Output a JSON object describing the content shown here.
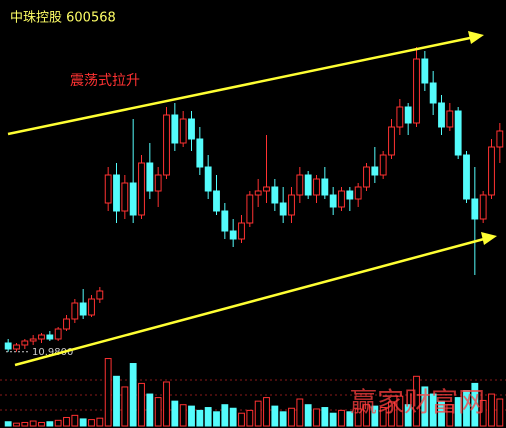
{
  "chart_data": {
    "type": "candlestick",
    "title": "中珠控股 600568",
    "annotation": "震荡式拉升",
    "low_marker": {
      "value": 10.98,
      "label": "10.9800"
    },
    "watermark": "赢家财富网",
    "up_color": "#ff3232",
    "down_color": "#54fcfc",
    "ylim": [
      10.0,
      19.0
    ],
    "volume_ylim": [
      0,
      100
    ],
    "open": [
      11.2,
      11.05,
      11.15,
      11.25,
      11.3,
      11.4,
      11.3,
      11.55,
      11.8,
      12.2,
      11.9,
      12.3,
      14.7,
      15.4,
      14.5,
      15.2,
      14.4,
      15.7,
      15.0,
      15.4,
      16.9,
      16.2,
      16.8,
      16.3,
      15.6,
      15.0,
      14.5,
      14.0,
      13.8,
      14.2,
      14.9,
      15.0,
      15.1,
      14.7,
      14.4,
      14.9,
      15.4,
      14.9,
      15.3,
      14.9,
      14.6,
      15.0,
      14.8,
      15.1,
      15.6,
      15.4,
      15.9,
      16.6,
      17.1,
      16.7,
      18.3,
      17.7,
      17.2,
      16.6,
      17.0,
      15.9,
      14.8,
      14.3,
      14.9,
      16.1
    ],
    "high": [
      11.3,
      11.2,
      11.3,
      11.4,
      11.45,
      11.5,
      11.6,
      11.9,
      12.3,
      12.55,
      12.4,
      12.6,
      15.6,
      15.7,
      15.4,
      16.8,
      15.9,
      16.2,
      15.6,
      17.1,
      17.2,
      17.0,
      17.0,
      16.6,
      15.9,
      15.4,
      14.7,
      14.3,
      14.4,
      15.0,
      15.3,
      16.4,
      15.3,
      15.1,
      15.1,
      15.6,
      15.5,
      15.4,
      15.6,
      15.1,
      15.1,
      15.1,
      15.2,
      15.7,
      16.1,
      16.0,
      16.8,
      17.3,
      17.2,
      18.6,
      18.5,
      18.0,
      17.4,
      17.2,
      17.1,
      16.0,
      15.6,
      15.0,
      16.3,
      16.7
    ],
    "low": [
      10.98,
      10.98,
      11.05,
      11.15,
      11.2,
      11.25,
      11.25,
      11.5,
      11.7,
      11.8,
      11.85,
      12.2,
      14.5,
      14.2,
      14.3,
      14.2,
      14.3,
      14.8,
      14.6,
      15.3,
      16.0,
      16.1,
      16.0,
      15.4,
      14.8,
      14.4,
      13.8,
      13.6,
      13.7,
      14.1,
      14.6,
      14.7,
      14.5,
      14.2,
      14.2,
      14.7,
      14.8,
      14.7,
      14.8,
      14.4,
      14.5,
      14.5,
      14.6,
      15.0,
      15.2,
      15.3,
      15.8,
      16.4,
      16.4,
      16.6,
      17.5,
      16.9,
      16.4,
      16.5,
      15.8,
      14.7,
      12.9,
      14.2,
      14.8,
      15.7
    ],
    "close": [
      11.05,
      11.15,
      11.25,
      11.3,
      11.4,
      11.3,
      11.55,
      11.8,
      12.2,
      11.9,
      12.3,
      12.5,
      15.4,
      14.5,
      15.2,
      14.4,
      15.7,
      15.0,
      15.4,
      16.9,
      16.2,
      16.8,
      16.3,
      15.6,
      15.0,
      14.5,
      14.0,
      13.8,
      14.2,
      14.9,
      15.0,
      15.1,
      14.7,
      14.4,
      14.9,
      15.4,
      14.9,
      15.3,
      14.9,
      14.6,
      15.0,
      14.8,
      15.1,
      15.6,
      15.4,
      15.9,
      16.6,
      17.1,
      16.7,
      18.3,
      17.7,
      17.2,
      16.6,
      17.0,
      15.9,
      14.8,
      14.3,
      14.9,
      16.1,
      16.5
    ],
    "volume": [
      6,
      4,
      5,
      7,
      5,
      6,
      8,
      12,
      15,
      10,
      9,
      11,
      95,
      70,
      55,
      88,
      60,
      45,
      40,
      62,
      35,
      30,
      28,
      22,
      26,
      20,
      30,
      25,
      18,
      22,
      35,
      40,
      28,
      20,
      25,
      38,
      30,
      24,
      26,
      18,
      22,
      20,
      24,
      30,
      28,
      26,
      34,
      42,
      30,
      70,
      55,
      45,
      35,
      30,
      40,
      50,
      60,
      36,
      45,
      38
    ]
  }
}
